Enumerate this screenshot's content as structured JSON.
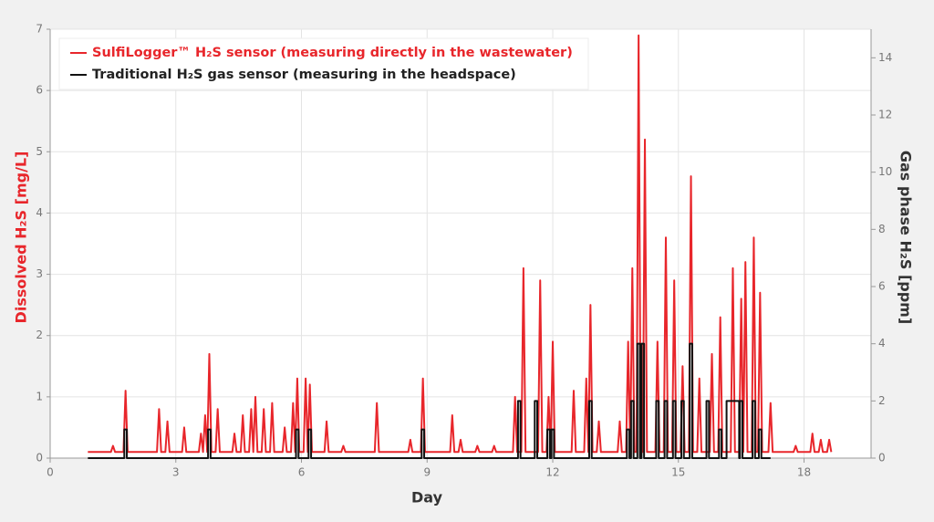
{
  "chart_data": {
    "type": "line",
    "x_label": "Day",
    "y_label": "Dissolved H₂S [mg/L]",
    "y2_label": "Gas phase H₂S [ppm]",
    "xlim": [
      0,
      19.6
    ],
    "xticks": [
      0,
      3,
      6,
      9,
      12,
      15,
      18
    ],
    "ylim": [
      0,
      7
    ],
    "yticks": [
      0,
      1,
      2,
      3,
      4,
      5,
      6,
      7
    ],
    "y2lim": [
      0,
      15
    ],
    "y2ticks": [
      0,
      2,
      4,
      6,
      8,
      10,
      12,
      14
    ],
    "grid": true,
    "legend": "top-left",
    "series": [
      {
        "name": "SulfiLogger™ H₂S sensor (measuring directly in the wastewater)",
        "color": "#e8262b",
        "axis": "y",
        "x": [
          0.9,
          1.45,
          1.5,
          1.55,
          1.75,
          1.8,
          1.85,
          2.55,
          2.6,
          2.65,
          2.75,
          2.8,
          2.85,
          3.15,
          3.2,
          3.25,
          3.55,
          3.6,
          3.65,
          3.65,
          3.7,
          3.75,
          3.75,
          3.8,
          3.85,
          3.95,
          4.0,
          4.05,
          4.35,
          4.4,
          4.45,
          4.55,
          4.6,
          4.65,
          4.75,
          4.8,
          4.85,
          4.85,
          4.9,
          4.95,
          5.05,
          5.1,
          5.15,
          5.25,
          5.3,
          5.35,
          5.55,
          5.6,
          5.65,
          5.75,
          5.8,
          5.85,
          5.85,
          5.9,
          5.95,
          6.05,
          6.1,
          6.15,
          6.15,
          6.2,
          6.25,
          6.55,
          6.6,
          6.65,
          6.95,
          7.0,
          7.05,
          7.75,
          7.8,
          7.85,
          8.55,
          8.6,
          8.65,
          8.85,
          8.9,
          8.95,
          9.55,
          9.6,
          9.65,
          9.75,
          9.8,
          9.85,
          10.15,
          10.2,
          10.25,
          10.55,
          10.6,
          10.65,
          11.05,
          11.1,
          11.15,
          11.25,
          11.3,
          11.35,
          11.65,
          11.7,
          11.75,
          11.85,
          11.9,
          11.95,
          11.95,
          12.0,
          12.05,
          12.45,
          12.5,
          12.55,
          12.75,
          12.8,
          12.85,
          12.85,
          12.9,
          12.95,
          13.05,
          13.1,
          13.15,
          13.55,
          13.6,
          13.65,
          13.75,
          13.8,
          13.85,
          13.85,
          13.9,
          13.95,
          14.0,
          14.05,
          14.1,
          14.15,
          14.2,
          14.25,
          14.45,
          14.5,
          14.55,
          14.65,
          14.7,
          14.75,
          14.85,
          14.9,
          14.95,
          15.05,
          15.1,
          15.15,
          15.25,
          15.3,
          15.35,
          15.45,
          15.5,
          15.55,
          15.75,
          15.8,
          15.85,
          15.95,
          16.0,
          16.05,
          16.25,
          16.3,
          16.35,
          16.45,
          16.5,
          16.55,
          16.55,
          16.6,
          16.65,
          16.75,
          16.8,
          16.85,
          16.9,
          16.95,
          17.0,
          17.15,
          17.2,
          17.25,
          17.75,
          17.8,
          17.85,
          18.15,
          18.2,
          18.25,
          18.35,
          18.4,
          18.45,
          18.55,
          18.6,
          18.65
        ],
        "values": [
          0.1,
          0.1,
          0.2,
          0.1,
          0.1,
          1.1,
          0.1,
          0.1,
          0.8,
          0.1,
          0.1,
          0.6,
          0.1,
          0.1,
          0.5,
          0.1,
          0.1,
          0.4,
          0.1,
          0.1,
          0.7,
          0.1,
          0.1,
          1.7,
          0.1,
          0.1,
          0.8,
          0.1,
          0.1,
          0.4,
          0.1,
          0.1,
          0.7,
          0.1,
          0.1,
          0.8,
          0.1,
          0.1,
          1.0,
          0.1,
          0.1,
          0.8,
          0.1,
          0.1,
          0.9,
          0.1,
          0.1,
          0.5,
          0.1,
          0.1,
          0.9,
          0.1,
          0.1,
          1.3,
          0.1,
          0.1,
          1.3,
          0.1,
          0.1,
          1.2,
          0.1,
          0.1,
          0.6,
          0.1,
          0.1,
          0.2,
          0.1,
          0.1,
          0.9,
          0.1,
          0.1,
          0.3,
          0.1,
          0.1,
          1.3,
          0.1,
          0.1,
          0.7,
          0.1,
          0.1,
          0.3,
          0.1,
          0.1,
          0.2,
          0.1,
          0.1,
          0.2,
          0.1,
          0.1,
          1.0,
          0.1,
          0.1,
          3.1,
          0.1,
          0.1,
          2.9,
          0.1,
          0.1,
          1.0,
          0.1,
          0.1,
          1.9,
          0.1,
          0.1,
          1.1,
          0.1,
          0.1,
          1.3,
          0.1,
          0.1,
          2.5,
          0.1,
          0.1,
          0.6,
          0.1,
          0.1,
          0.6,
          0.1,
          0.1,
          1.9,
          0.1,
          0.1,
          3.1,
          0.1,
          0.1,
          6.9,
          0.1,
          0.1,
          5.2,
          0.1,
          0.1,
          1.9,
          0.1,
          0.1,
          3.6,
          0.1,
          0.1,
          2.9,
          0.1,
          0.1,
          1.5,
          0.1,
          0.1,
          4.6,
          0.1,
          0.1,
          1.3,
          0.1,
          0.1,
          1.7,
          0.1,
          0.1,
          2.3,
          0.1,
          0.1,
          3.1,
          0.1,
          0.1,
          2.6,
          0.1,
          0.1,
          3.2,
          0.1,
          0.1,
          3.6,
          0.1,
          0.1,
          2.7,
          0.1,
          0.1,
          0.9,
          0.1,
          0.1,
          0.2,
          0.1,
          0.1,
          0.4,
          0.1,
          0.1,
          0.3,
          0.1,
          0.1,
          0.3,
          0.1
        ]
      },
      {
        "name": "Traditional H₂S gas sensor (measuring in the headspace)",
        "color": "#111111",
        "axis": "y2",
        "x": [
          0.9,
          1.77,
          1.77,
          1.83,
          1.83,
          3.77,
          3.77,
          3.83,
          3.83,
          5.87,
          5.87,
          5.93,
          5.93,
          6.17,
          6.17,
          6.23,
          6.23,
          8.87,
          8.87,
          8.93,
          8.93,
          11.17,
          11.17,
          11.23,
          11.23,
          11.57,
          11.57,
          11.63,
          11.63,
          11.87,
          11.87,
          11.93,
          11.93,
          11.97,
          11.97,
          12.03,
          12.03,
          12.87,
          12.87,
          12.93,
          12.93,
          13.77,
          13.77,
          13.83,
          13.83,
          13.87,
          13.87,
          13.93,
          13.93,
          14.02,
          14.02,
          14.08,
          14.08,
          14.12,
          14.12,
          14.18,
          14.18,
          14.47,
          14.47,
          14.53,
          14.53,
          14.67,
          14.67,
          14.73,
          14.73,
          14.87,
          14.87,
          14.93,
          14.93,
          15.07,
          15.07,
          15.13,
          15.13,
          15.27,
          15.27,
          15.33,
          15.33,
          15.67,
          15.67,
          15.73,
          15.73,
          15.97,
          15.97,
          16.03,
          16.03,
          16.15,
          16.15,
          16.45,
          16.45,
          16.47,
          16.47,
          16.53,
          16.53,
          16.77,
          16.77,
          16.83,
          16.83,
          16.92,
          16.92,
          16.98,
          16.98,
          17.2
        ],
        "values": [
          0,
          0,
          1,
          1,
          0,
          0,
          1,
          1,
          0,
          0,
          1,
          1,
          0,
          0,
          1,
          1,
          0,
          0,
          1,
          1,
          0,
          0,
          2,
          2,
          0,
          0,
          2,
          2,
          0,
          0,
          1,
          1,
          0,
          0,
          1,
          1,
          0,
          0,
          2,
          2,
          0,
          0,
          1,
          1,
          0,
          0,
          2,
          2,
          0,
          0,
          4,
          4,
          0,
          0,
          4,
          4,
          0,
          0,
          2,
          2,
          0,
          0,
          2,
          2,
          0,
          0,
          2,
          2,
          0,
          0,
          2,
          2,
          0,
          0,
          4,
          4,
          0,
          0,
          2,
          2,
          0,
          0,
          1,
          1,
          0,
          0,
          2,
          2,
          0,
          0,
          2,
          2,
          0,
          0,
          2,
          2,
          0,
          0,
          1,
          1,
          0,
          0
        ]
      }
    ]
  }
}
